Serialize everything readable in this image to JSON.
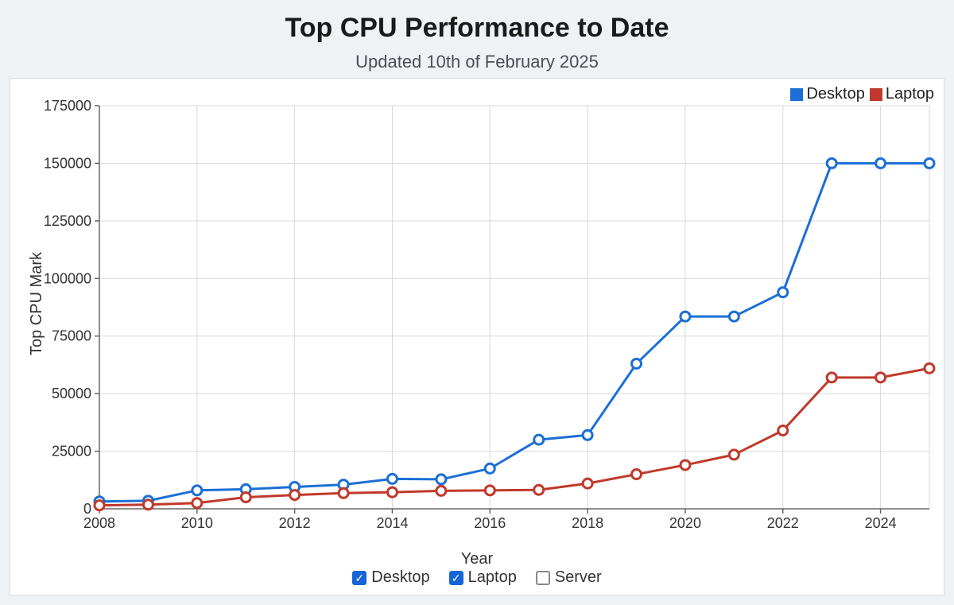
{
  "title": "Top CPU Performance to Date",
  "subtitle": "Updated 10th of February 2025",
  "chart": {
    "type": "line",
    "background_color": "#ffffff",
    "page_background": "#eef2f5",
    "grid_color": "#d9d9d9",
    "axis_color": "#666666",
    "text_color": "#333333",
    "title_fontsize": 34,
    "subtitle_fontsize": 22,
    "label_fontsize": 20,
    "tick_fontsize": 18,
    "line_width": 3,
    "marker_radius": 6,
    "marker_fill": "#ffffff",
    "marker_stroke_width": 3,
    "xlabel": "Year",
    "ylabel": "Top CPU Mark",
    "xlim": [
      2008,
      2025
    ],
    "ylim": [
      0,
      175000
    ],
    "xtick_step": 2,
    "ytick_step": 25000,
    "xticks": [
      2008,
      2010,
      2012,
      2014,
      2016,
      2018,
      2020,
      2022,
      2024
    ],
    "yticks": [
      0,
      25000,
      50000,
      75000,
      100000,
      125000,
      150000,
      175000
    ],
    "x": [
      2008,
      2009,
      2010,
      2011,
      2012,
      2013,
      2014,
      2015,
      2016,
      2017,
      2018,
      2019,
      2020,
      2021,
      2022,
      2023,
      2024,
      2025
    ],
    "series": [
      {
        "name": "Desktop",
        "color": "#1b6fd6",
        "visible": true,
        "values": [
          3200,
          3500,
          8000,
          8500,
          9500,
          10500,
          13000,
          12800,
          17500,
          30000,
          32000,
          63000,
          83500,
          83500,
          94000,
          150000,
          150000,
          150000
        ]
      },
      {
        "name": "Laptop",
        "color": "#c0392b",
        "visible": true,
        "values": [
          1500,
          1800,
          2500,
          5000,
          6000,
          6800,
          7200,
          7800,
          8000,
          8200,
          11000,
          15000,
          19000,
          23500,
          34000,
          57000,
          57000,
          61000
        ]
      },
      {
        "name": "Server",
        "color": "#2e7d32",
        "visible": false,
        "values": []
      }
    ],
    "legend": {
      "position": "top-right",
      "items": [
        {
          "label": "Desktop",
          "color": "#1b6fd6"
        },
        {
          "label": "Laptop",
          "color": "#c0392b"
        }
      ]
    },
    "controls": [
      {
        "label": "Desktop",
        "checked": true
      },
      {
        "label": "Laptop",
        "checked": true
      },
      {
        "label": "Server",
        "checked": false
      }
    ]
  }
}
